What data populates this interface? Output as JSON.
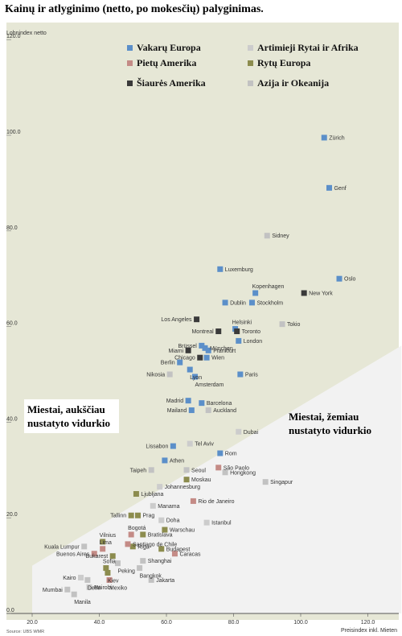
{
  "title": "Kainų ir atlyginimo (netto, po mokesčių) palyginimas.",
  "source": "Source: UBS WMR",
  "chart_data": {
    "type": "scatter",
    "xlabel": "Preisindex inkl. Mieten",
    "ylabel": "Lohnindex netto",
    "xlim": [
      20,
      130
    ],
    "ylim": [
      0,
      120
    ],
    "xticks": [
      "20.0",
      "40.0",
      "60.0",
      "80.0",
      "100.0",
      "120.0"
    ],
    "yticks": [
      "0.0",
      "20.0",
      "40.0",
      "60.0",
      "80.0",
      "100.0",
      "120.0"
    ],
    "grid": false,
    "legend_position": "top",
    "colors": {
      "west_europe": "#5b8fc9",
      "south_america": "#c48b86",
      "north_america": "#3a3a3a",
      "middle_east_africa": "#cccccc",
      "east_europe": "#8c8c4e",
      "asia_oceania": "#c2c2c2",
      "upper_region": "#e6e7d6",
      "lower_region": "#f2f2f2"
    },
    "legend": [
      {
        "key": "west_europe",
        "label": "Vakarų Europa"
      },
      {
        "key": "middle_east_africa",
        "label": "Artimieji Rytai ir Afrika"
      },
      {
        "key": "south_america",
        "label": "Pietų Amerika"
      },
      {
        "key": "east_europe",
        "label": "Rytų Europa"
      },
      {
        "key": "north_america",
        "label": "Šiaurės Amerika"
      },
      {
        "key": "asia_oceania",
        "label": "Azija ir Okeanija"
      }
    ],
    "annotations": {
      "above": [
        "Miestai, aukščiau",
        "nustatyto vidurkio"
      ],
      "below": [
        "Miestai, žemiau",
        "nustatyto vidurkio"
      ]
    },
    "points": [
      {
        "city": "Zürich",
        "x": 107,
        "y": 99.5,
        "region": "west_europe"
      },
      {
        "city": "Genf",
        "x": 108.5,
        "y": 89,
        "region": "west_europe"
      },
      {
        "city": "Sidney",
        "x": 90,
        "y": 79,
        "region": "asia_oceania"
      },
      {
        "city": "Luxemburg",
        "x": 76,
        "y": 72,
        "region": "west_europe"
      },
      {
        "city": "Oslo",
        "x": 111.5,
        "y": 70,
        "region": "west_europe"
      },
      {
        "city": "Kopenhagen",
        "x": 86.5,
        "y": 67,
        "region": "west_europe"
      },
      {
        "city": "New York",
        "x": 101,
        "y": 67,
        "region": "north_america"
      },
      {
        "city": "Dublin",
        "x": 77.5,
        "y": 65,
        "region": "west_europe"
      },
      {
        "city": "Stockholm",
        "x": 85.5,
        "y": 65,
        "region": "west_europe"
      },
      {
        "city": "Los Angeles",
        "x": 69,
        "y": 61.5,
        "region": "north_america"
      },
      {
        "city": "Helsinki",
        "x": 80.5,
        "y": 59.5,
        "region": "west_europe"
      },
      {
        "city": "Tokio",
        "x": 94.5,
        "y": 60.5,
        "region": "asia_oceania"
      },
      {
        "city": "Montreal",
        "x": 75.5,
        "y": 59,
        "region": "north_america"
      },
      {
        "city": "Toronto",
        "x": 81,
        "y": 59,
        "region": "north_america"
      },
      {
        "city": "Brüssel",
        "x": 70.5,
        "y": 56,
        "region": "west_europe"
      },
      {
        "city": "München",
        "x": 71.5,
        "y": 55.5,
        "region": "west_europe"
      },
      {
        "city": "London",
        "x": 81.5,
        "y": 57,
        "region": "west_europe"
      },
      {
        "city": "Miami",
        "x": 66.5,
        "y": 55,
        "region": "north_america"
      },
      {
        "city": "Frankfurt",
        "x": 72.5,
        "y": 55,
        "region": "west_europe"
      },
      {
        "city": "Chicago",
        "x": 70,
        "y": 53.5,
        "region": "north_america"
      },
      {
        "city": "Wien",
        "x": 72,
        "y": 53.5,
        "region": "west_europe"
      },
      {
        "city": "Berlin",
        "x": 64,
        "y": 52.5,
        "region": "west_europe"
      },
      {
        "city": "Lyon",
        "x": 67,
        "y": 51,
        "region": "west_europe"
      },
      {
        "city": "Paris",
        "x": 82,
        "y": 50,
        "region": "west_europe"
      },
      {
        "city": "Nikosia",
        "x": 61,
        "y": 50,
        "region": "asia_oceania"
      },
      {
        "city": "Amsterdam",
        "x": 68.5,
        "y": 49.5,
        "region": "west_europe"
      },
      {
        "city": "Madrid",
        "x": 66.5,
        "y": 44.5,
        "region": "west_europe"
      },
      {
        "city": "Barcelona",
        "x": 70.5,
        "y": 44,
        "region": "west_europe"
      },
      {
        "city": "Mailand",
        "x": 67.5,
        "y": 42.5,
        "region": "west_europe"
      },
      {
        "city": "Auckland",
        "x": 72.5,
        "y": 42.5,
        "region": "asia_oceania"
      },
      {
        "city": "Dubai",
        "x": 81.5,
        "y": 38,
        "region": "middle_east_africa"
      },
      {
        "city": "Lissabon",
        "x": 62,
        "y": 35,
        "region": "west_europe"
      },
      {
        "city": "Tel Aviv",
        "x": 67,
        "y": 35.5,
        "region": "middle_east_africa"
      },
      {
        "city": "Rom",
        "x": 76,
        "y": 33.5,
        "region": "west_europe"
      },
      {
        "city": "Athen",
        "x": 59.5,
        "y": 32,
        "region": "west_europe"
      },
      {
        "city": "Taipeh",
        "x": 55.5,
        "y": 30,
        "region": "asia_oceania"
      },
      {
        "city": "Seoul",
        "x": 66,
        "y": 30,
        "region": "asia_oceania"
      },
      {
        "city": "São Paolo",
        "x": 75.5,
        "y": 30.5,
        "region": "south_america"
      },
      {
        "city": "Hongkong",
        "x": 77.5,
        "y": 29.5,
        "region": "asia_oceania"
      },
      {
        "city": "Moskau",
        "x": 66,
        "y": 28,
        "region": "east_europe"
      },
      {
        "city": "Singapur",
        "x": 89.5,
        "y": 27.5,
        "region": "asia_oceania"
      },
      {
        "city": "Johannesburg",
        "x": 58,
        "y": 26.5,
        "region": "middle_east_africa"
      },
      {
        "city": "Ljubljana",
        "x": 51,
        "y": 25,
        "region": "east_europe"
      },
      {
        "city": "Rio de Janeiro",
        "x": 68,
        "y": 23.5,
        "region": "south_america"
      },
      {
        "city": "Manama",
        "x": 56,
        "y": 22.5,
        "region": "middle_east_africa"
      },
      {
        "city": "Tallinn",
        "x": 49.5,
        "y": 20.5,
        "region": "east_europe"
      },
      {
        "city": "Prag",
        "x": 51.5,
        "y": 20.5,
        "region": "east_europe"
      },
      {
        "city": "Doha",
        "x": 58.5,
        "y": 19.5,
        "region": "middle_east_africa"
      },
      {
        "city": "Istanbul",
        "x": 72,
        "y": 19,
        "region": "middle_east_africa"
      },
      {
        "city": "Warschau",
        "x": 59.5,
        "y": 17.5,
        "region": "east_europe"
      },
      {
        "city": "Vilnius",
        "x": 41,
        "y": 15,
        "region": "east_europe"
      },
      {
        "city": "Bogotá",
        "x": 49.5,
        "y": 16.5,
        "region": "south_america"
      },
      {
        "city": "Bratislava",
        "x": 53,
        "y": 16.5,
        "region": "east_europe"
      },
      {
        "city": "Lima",
        "x": 41,
        "y": 13.5,
        "region": "south_america"
      },
      {
        "city": "Kuala Lumpur",
        "x": 35.5,
        "y": 14,
        "region": "asia_oceania"
      },
      {
        "city": "Riga",
        "x": 50,
        "y": 14,
        "region": "east_europe"
      },
      {
        "city": "Santiago de Chile",
        "x": 48.5,
        "y": 14.5,
        "region": "south_america"
      },
      {
        "city": "Buenos Aires",
        "x": 38.5,
        "y": 12.5,
        "region": "south_america"
      },
      {
        "city": "Budapest",
        "x": 58.5,
        "y": 13.5,
        "region": "east_europe"
      },
      {
        "city": "Caracas",
        "x": 62.5,
        "y": 12.5,
        "region": "south_america"
      },
      {
        "city": "Bukarest",
        "x": 44,
        "y": 12,
        "region": "east_europe"
      },
      {
        "city": "Peking",
        "x": 45.5,
        "y": 10.5,
        "region": "asia_oceania"
      },
      {
        "city": "Shanghai",
        "x": 53,
        "y": 11,
        "region": "asia_oceania"
      },
      {
        "city": "Sofia",
        "x": 42,
        "y": 9.5,
        "region": "east_europe"
      },
      {
        "city": "Kiev",
        "x": 42.5,
        "y": 8.5,
        "region": "east_europe"
      },
      {
        "city": "Bangkok",
        "x": 52,
        "y": 9.5,
        "region": "asia_oceania"
      },
      {
        "city": "Kairo",
        "x": 34.5,
        "y": 7.5,
        "region": "middle_east_africa"
      },
      {
        "city": "Delhi",
        "x": 36.5,
        "y": 7,
        "region": "asia_oceania"
      },
      {
        "city": "Mexiko",
        "x": 43,
        "y": 7,
        "region": "south_america"
      },
      {
        "city": "Jakarta",
        "x": 55.5,
        "y": 7,
        "region": "asia_oceania"
      },
      {
        "city": "Nairobi",
        "x": 37,
        "y": 5.5,
        "region": "middle_east_africa"
      },
      {
        "city": "Mumbai",
        "x": 30.5,
        "y": 5,
        "region": "asia_oceania"
      },
      {
        "city": "Manila",
        "x": 32.5,
        "y": 4,
        "region": "asia_oceania"
      }
    ]
  }
}
